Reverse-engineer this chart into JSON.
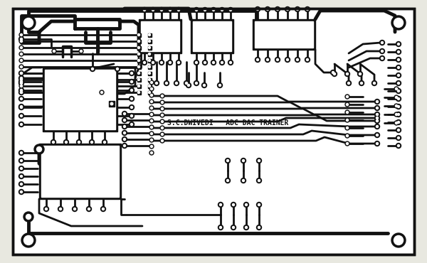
{
  "bg_color": "#e8e8e0",
  "board_color": "#ffffff",
  "trace_color": "#111111",
  "title_text": "S.C.DWIVEDI   ADC DAC TRAINER",
  "title_fontsize": 7.0,
  "lw": 2.0,
  "lw_thick": 3.5
}
